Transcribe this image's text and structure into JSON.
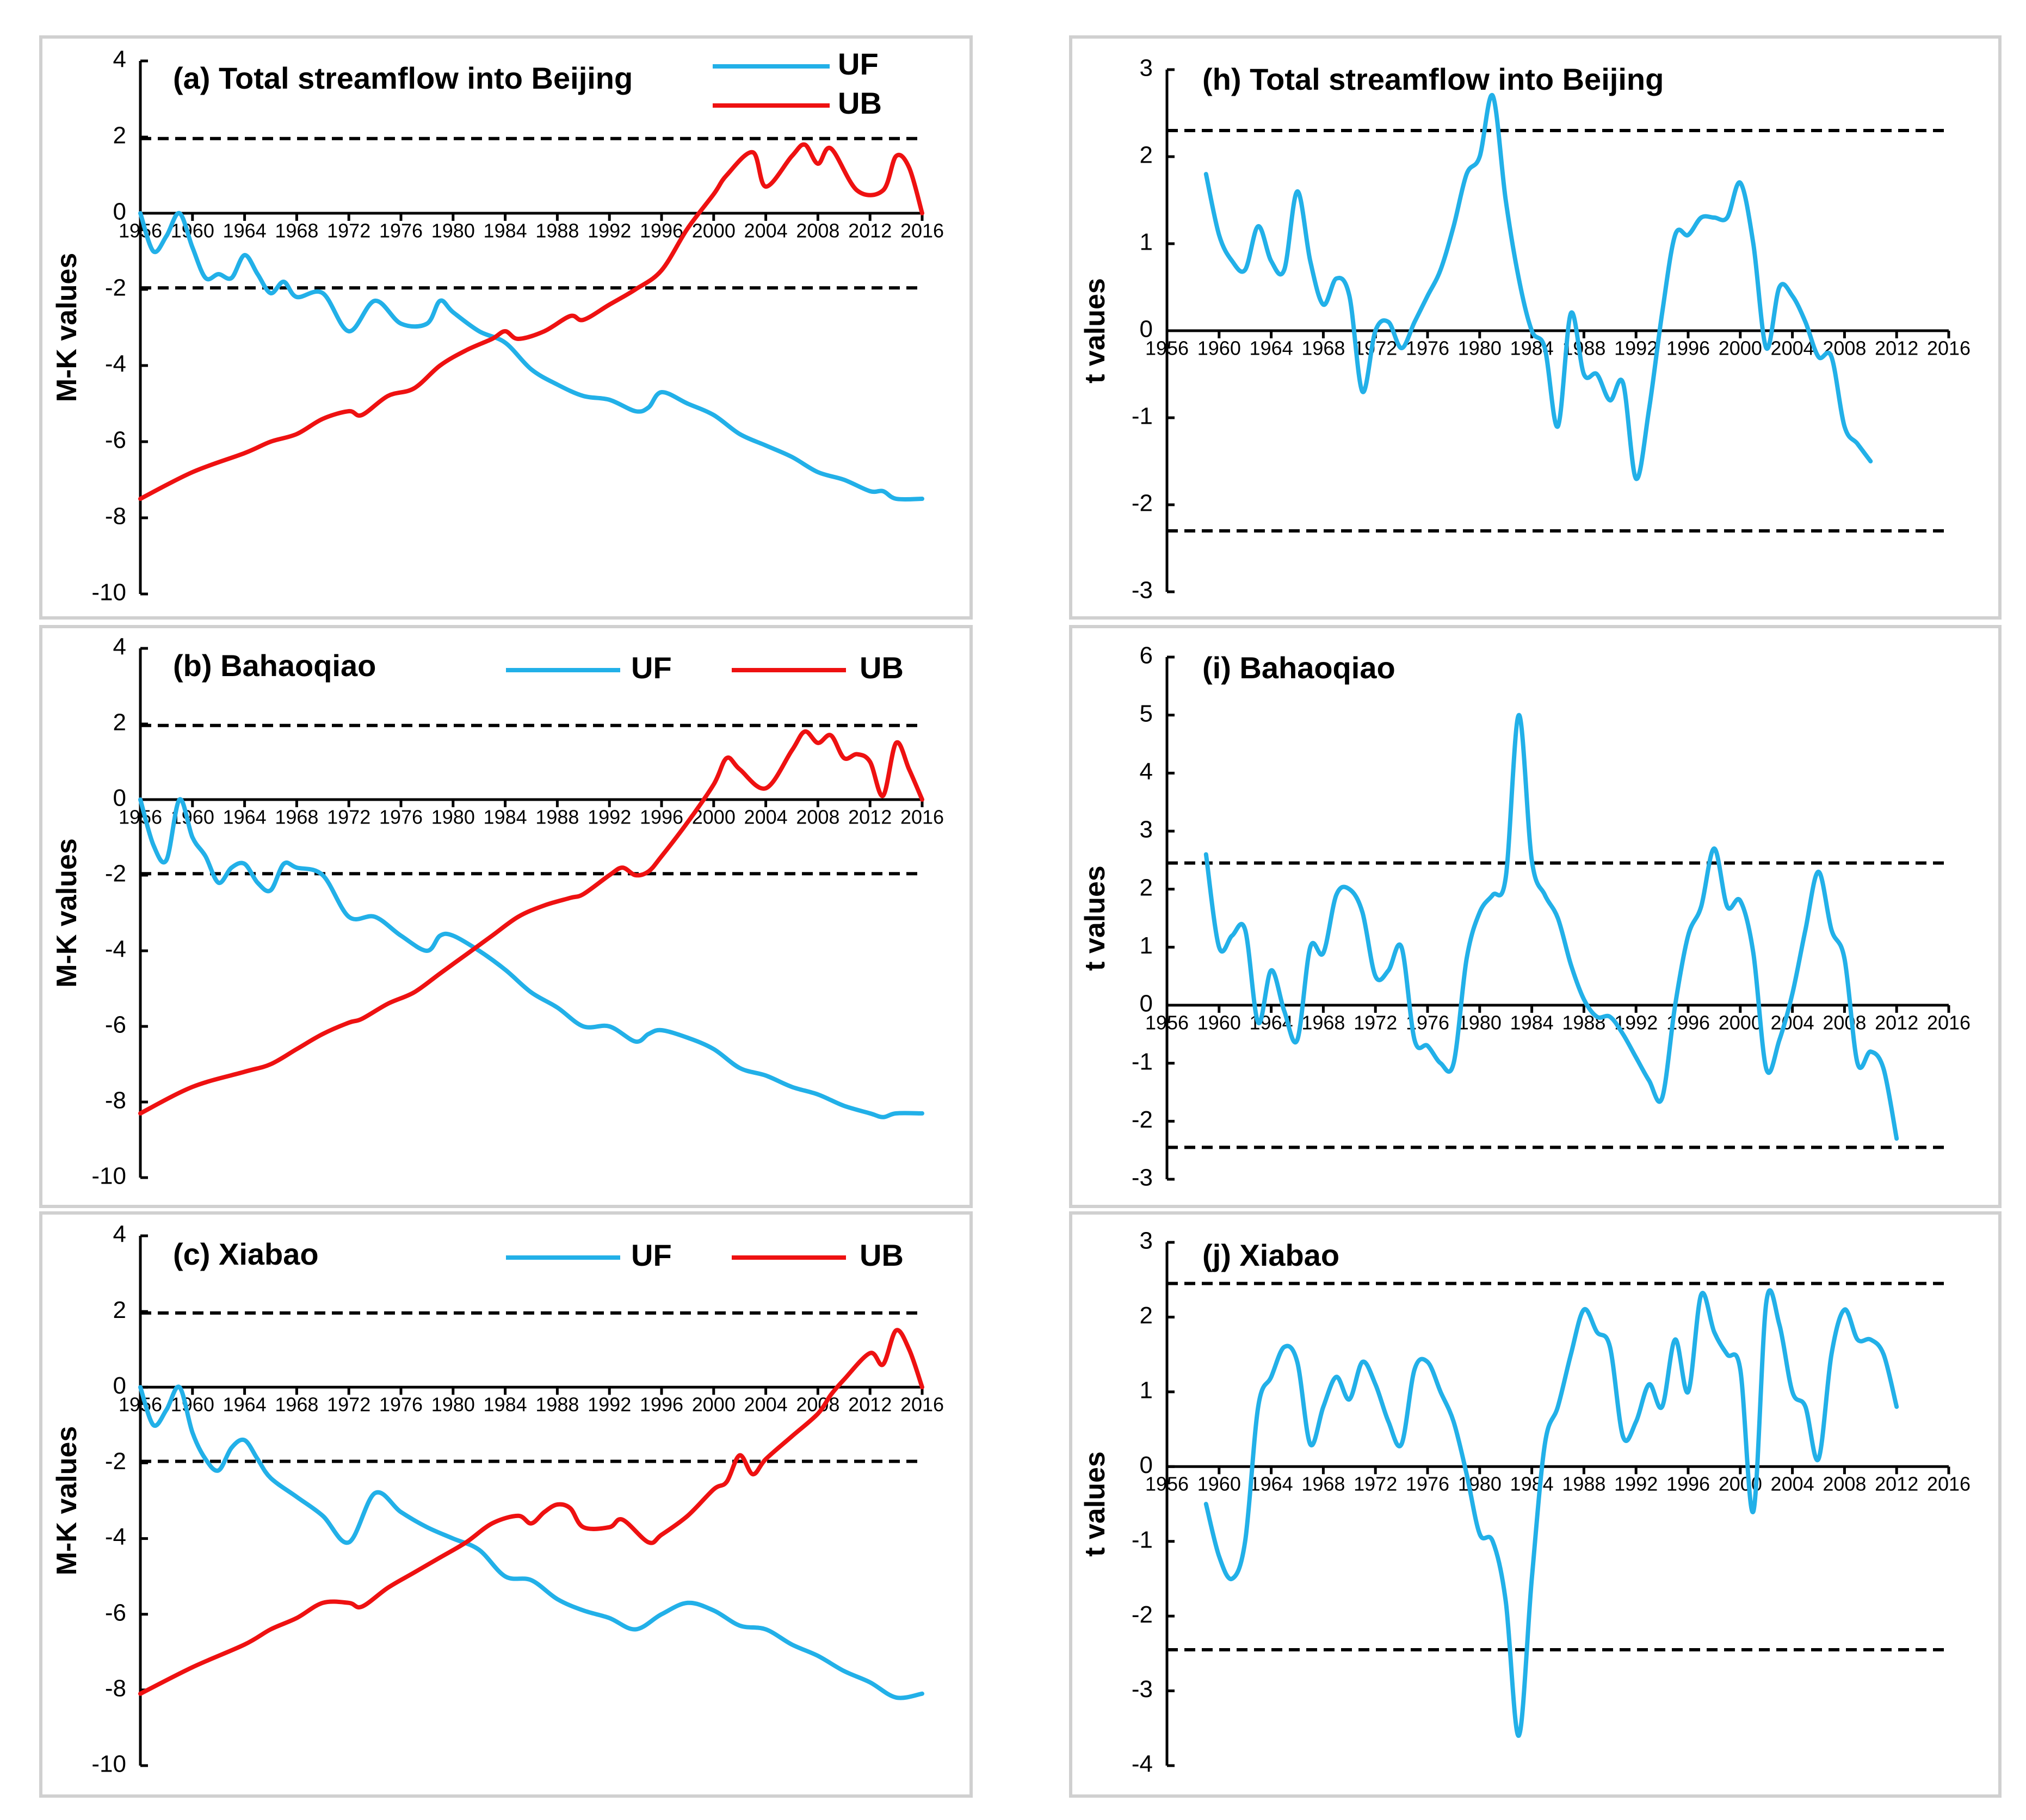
{
  "colors": {
    "UF": "#22b0e8",
    "UB": "#ee1111",
    "threshold": "#000000"
  },
  "x_years": [
    1956,
    1960,
    1964,
    1968,
    1972,
    1976,
    1980,
    1984,
    1988,
    1992,
    1996,
    2000,
    2004,
    2008,
    2012,
    2016
  ],
  "chart_data": [
    {
      "id": "a",
      "type": "line",
      "title": "(a) Total streamflow into Beijing",
      "ylabel": "M-K values",
      "xlabel": "",
      "ylim": [
        -10,
        4
      ],
      "yticks": [
        4,
        2,
        0,
        -2,
        -4,
        -6,
        -8,
        -10
      ],
      "thresholds": [
        1.96,
        -1.96
      ],
      "legend": [
        "UF",
        "UB"
      ],
      "series": [
        {
          "name": "UF",
          "x": [
            1956,
            1957,
            1958,
            1959,
            1960,
            1961,
            1962,
            1963,
            1964,
            1965,
            1966,
            1967,
            1968,
            1970,
            1972,
            1974,
            1976,
            1978,
            1979,
            1980,
            1982,
            1984,
            1986,
            1988,
            1990,
            1992,
            1994,
            1995,
            1996,
            1998,
            2000,
            2002,
            2004,
            2006,
            2008,
            2010,
            2012,
            2013,
            2014,
            2016
          ],
          "y": [
            0,
            -1.0,
            -0.6,
            0,
            -0.9,
            -1.7,
            -1.6,
            -1.7,
            -1.1,
            -1.6,
            -2.1,
            -1.8,
            -2.2,
            -2.1,
            -3.1,
            -2.3,
            -2.9,
            -2.9,
            -2.3,
            -2.6,
            -3.1,
            -3.4,
            -4.1,
            -4.5,
            -4.8,
            -4.9,
            -5.2,
            -5.1,
            -4.7,
            -5.0,
            -5.3,
            -5.8,
            -6.1,
            -6.4,
            -6.8,
            -7.0,
            -7.3,
            -7.3,
            -7.5,
            -7.5
          ]
        },
        {
          "name": "UB",
          "x": [
            1956,
            1960,
            1964,
            1966,
            1968,
            1970,
            1972,
            1973,
            1975,
            1977,
            1979,
            1981,
            1983,
            1984,
            1985,
            1987,
            1989,
            1990,
            1992,
            1994,
            1996,
            1998,
            2000,
            2001,
            2003,
            2004,
            2006,
            2007,
            2008,
            2009,
            2011,
            2013,
            2014,
            2015,
            2016
          ],
          "y": [
            -7.5,
            -6.8,
            -6.3,
            -6.0,
            -5.8,
            -5.4,
            -5.2,
            -5.3,
            -4.8,
            -4.6,
            -4.0,
            -3.6,
            -3.3,
            -3.1,
            -3.3,
            -3.1,
            -2.7,
            -2.8,
            -2.4,
            -2.0,
            -1.5,
            -0.4,
            0.5,
            1.0,
            1.6,
            0.7,
            1.5,
            1.8,
            1.3,
            1.7,
            0.6,
            0.6,
            1.5,
            1.2,
            0
          ]
        }
      ]
    },
    {
      "id": "b",
      "type": "line",
      "title": "(b) Bahaoqiao",
      "ylabel": "M-K values",
      "xlabel": "",
      "ylim": [
        -10,
        4
      ],
      "yticks": [
        4,
        2,
        0,
        -2,
        -4,
        -6,
        -8,
        -10
      ],
      "thresholds": [
        1.96,
        -1.96
      ],
      "legend": [
        "UF",
        "UB"
      ],
      "series": [
        {
          "name": "UF",
          "x": [
            1956,
            1957,
            1958,
            1959,
            1960,
            1961,
            1962,
            1963,
            1964,
            1965,
            1966,
            1967,
            1968,
            1970,
            1972,
            1974,
            1976,
            1978,
            1979,
            1980,
            1982,
            1984,
            1986,
            1988,
            1990,
            1992,
            1994,
            1995,
            1996,
            1998,
            2000,
            2002,
            2004,
            2006,
            2008,
            2010,
            2012,
            2013,
            2014,
            2016
          ],
          "y": [
            0,
            -1.2,
            -1.6,
            0,
            -1.0,
            -1.5,
            -2.2,
            -1.8,
            -1.7,
            -2.2,
            -2.4,
            -1.7,
            -1.8,
            -2.0,
            -3.1,
            -3.1,
            -3.6,
            -4.0,
            -3.6,
            -3.6,
            -4.0,
            -4.5,
            -5.1,
            -5.5,
            -6.0,
            -6.0,
            -6.4,
            -6.2,
            -6.1,
            -6.3,
            -6.6,
            -7.1,
            -7.3,
            -7.6,
            -7.8,
            -8.1,
            -8.3,
            -8.4,
            -8.3,
            -8.3
          ]
        },
        {
          "name": "UB",
          "x": [
            1956,
            1960,
            1964,
            1966,
            1968,
            1970,
            1972,
            1973,
            1975,
            1977,
            1979,
            1981,
            1983,
            1985,
            1987,
            1989,
            1990,
            1992,
            1993,
            1994,
            1995,
            1996,
            1998,
            2000,
            2001,
            2002,
            2004,
            2006,
            2007,
            2008,
            2009,
            2010,
            2011,
            2012,
            2013,
            2014,
            2015,
            2016
          ],
          "y": [
            -8.3,
            -7.6,
            -7.2,
            -7.0,
            -6.6,
            -6.2,
            -5.9,
            -5.8,
            -5.4,
            -5.1,
            -4.6,
            -4.1,
            -3.6,
            -3.1,
            -2.8,
            -2.6,
            -2.5,
            -2.0,
            -1.8,
            -2.0,
            -1.9,
            -1.5,
            -0.6,
            0.4,
            1.1,
            0.8,
            0.3,
            1.3,
            1.8,
            1.5,
            1.7,
            1.1,
            1.2,
            1.0,
            0.1,
            1.5,
            0.8,
            0
          ]
        }
      ]
    },
    {
      "id": "c",
      "type": "line",
      "title": "(c) Xiabao",
      "ylabel": "M-K values",
      "xlabel": "",
      "ylim": [
        -10,
        4
      ],
      "yticks": [
        4,
        2,
        0,
        -2,
        -4,
        -6,
        -8,
        -10
      ],
      "thresholds": [
        1.96,
        -1.96
      ],
      "legend": [
        "UF",
        "UB"
      ],
      "series": [
        {
          "name": "UF",
          "x": [
            1956,
            1957,
            1958,
            1959,
            1960,
            1961,
            1962,
            1963,
            1964,
            1965,
            1966,
            1968,
            1970,
            1972,
            1974,
            1976,
            1978,
            1980,
            1982,
            1984,
            1986,
            1988,
            1990,
            1992,
            1994,
            1996,
            1998,
            2000,
            2002,
            2004,
            2006,
            2008,
            2010,
            2012,
            2014,
            2016
          ],
          "y": [
            0,
            -1.0,
            -0.6,
            0,
            -1.2,
            -1.9,
            -2.2,
            -1.6,
            -1.4,
            -1.9,
            -2.4,
            -2.9,
            -3.4,
            -4.1,
            -2.8,
            -3.3,
            -3.7,
            -4.0,
            -4.3,
            -5.0,
            -5.1,
            -5.6,
            -5.9,
            -6.1,
            -6.4,
            -6.0,
            -5.7,
            -5.9,
            -6.3,
            -6.4,
            -6.8,
            -7.1,
            -7.5,
            -7.8,
            -8.2,
            -8.1
          ]
        },
        {
          "name": "UB",
          "x": [
            1956,
            1960,
            1964,
            1966,
            1968,
            1970,
            1972,
            1973,
            1975,
            1977,
            1979,
            1981,
            1983,
            1985,
            1986,
            1987,
            1988,
            1989,
            1990,
            1992,
            1993,
            1995,
            1996,
            1998,
            2000,
            2001,
            2002,
            2003,
            2004,
            2006,
            2008,
            2009,
            2010,
            2012,
            2013,
            2014,
            2015,
            2016
          ],
          "y": [
            -8.1,
            -7.4,
            -6.8,
            -6.4,
            -6.1,
            -5.7,
            -5.7,
            -5.8,
            -5.3,
            -4.9,
            -4.5,
            -4.1,
            -3.6,
            -3.4,
            -3.6,
            -3.3,
            -3.1,
            -3.2,
            -3.7,
            -3.7,
            -3.5,
            -4.1,
            -3.9,
            -3.4,
            -2.7,
            -2.5,
            -1.8,
            -2.3,
            -1.9,
            -1.3,
            -0.7,
            -0.2,
            0.2,
            0.9,
            0.6,
            1.5,
            1.0,
            0
          ]
        }
      ]
    },
    {
      "id": "h",
      "type": "line",
      "title": "(h) Total streamflow into Beijing",
      "ylabel": "t values",
      "xlabel": "",
      "ylim": [
        -3,
        3
      ],
      "yticks": [
        3,
        2,
        1,
        0,
        -1,
        -2,
        -3
      ],
      "thresholds": [
        2.3,
        -2.3
      ],
      "legend": [],
      "series": [
        {
          "name": "UF",
          "x": [
            1959,
            1960,
            1961,
            1962,
            1963,
            1964,
            1965,
            1966,
            1967,
            1968,
            1969,
            1970,
            1971,
            1972,
            1973,
            1974,
            1975,
            1976,
            1977,
            1978,
            1979,
            1980,
            1981,
            1982,
            1983,
            1984,
            1985,
            1986,
            1987,
            1988,
            1989,
            1990,
            1991,
            1992,
            1993,
            1994,
            1995,
            1996,
            1997,
            1998,
            1999,
            2000,
            2001,
            2002,
            2003,
            2004,
            2005,
            2006,
            2007,
            2008,
            2009,
            2010
          ],
          "y": [
            1.8,
            1.1,
            0.8,
            0.7,
            1.2,
            0.8,
            0.7,
            1.6,
            0.8,
            0.3,
            0.6,
            0.4,
            -0.7,
            0.0,
            0.1,
            -0.2,
            0.1,
            0.4,
            0.7,
            1.2,
            1.8,
            2.0,
            2.7,
            1.5,
            0.6,
            0.0,
            -0.2,
            -1.1,
            0.2,
            -0.5,
            -0.5,
            -0.8,
            -0.6,
            -1.7,
            -0.9,
            0.2,
            1.1,
            1.1,
            1.3,
            1.3,
            1.3,
            1.7,
            1.0,
            -0.2,
            0.5,
            0.4,
            0.1,
            -0.3,
            -0.3,
            -1.1,
            -1.3,
            -1.5
          ]
        }
      ]
    },
    {
      "id": "i",
      "type": "line",
      "title": "(i) Bahaoqiao",
      "ylabel": "t values",
      "xlabel": "",
      "ylim": [
        -3,
        6
      ],
      "yticks": [
        6,
        5,
        4,
        3,
        2,
        1,
        0,
        -1,
        -2,
        -3
      ],
      "thresholds": [
        2.45,
        -2.45
      ],
      "legend": [],
      "series": [
        {
          "name": "UF",
          "x": [
            1959,
            1960,
            1961,
            1962,
            1963,
            1964,
            1965,
            1966,
            1967,
            1968,
            1969,
            1970,
            1971,
            1972,
            1973,
            1974,
            1975,
            1976,
            1977,
            1978,
            1979,
            1980,
            1981,
            1982,
            1983,
            1984,
            1985,
            1986,
            1987,
            1988,
            1989,
            1990,
            1991,
            1992,
            1993,
            1994,
            1995,
            1996,
            1997,
            1998,
            1999,
            2000,
            2001,
            2002,
            2003,
            2004,
            2005,
            2006,
            2007,
            2008,
            2009,
            2010,
            2011,
            2012
          ],
          "y": [
            2.6,
            1.0,
            1.2,
            1.3,
            -0.3,
            0.6,
            -0.1,
            -0.6,
            1.0,
            0.9,
            1.9,
            2.0,
            1.6,
            0.5,
            0.6,
            1.0,
            -0.6,
            -0.7,
            -1.0,
            -1.0,
            0.8,
            1.6,
            1.9,
            2.2,
            5.0,
            2.5,
            1.9,
            1.5,
            0.7,
            0.1,
            -0.2,
            -0.2,
            -0.5,
            -0.9,
            -1.3,
            -1.6,
            0.0,
            1.2,
            1.7,
            2.7,
            1.7,
            1.8,
            0.9,
            -1.1,
            -0.6,
            0.2,
            1.3,
            2.3,
            1.3,
            0.8,
            -1.0,
            -0.8,
            -1.1,
            -2.3
          ]
        }
      ]
    },
    {
      "id": "j",
      "type": "line",
      "title": "(j) Xiabao",
      "ylabel": "t values",
      "xlabel": "",
      "ylim": [
        -4,
        3
      ],
      "yticks": [
        3,
        2,
        1,
        0,
        -1,
        -2,
        -3,
        -4
      ],
      "thresholds": [
        2.45,
        -2.45
      ],
      "legend": [],
      "series": [
        {
          "name": "UF",
          "x": [
            1959,
            1960,
            1961,
            1962,
            1963,
            1964,
            1965,
            1966,
            1967,
            1968,
            1969,
            1970,
            1971,
            1972,
            1973,
            1974,
            1975,
            1976,
            1977,
            1978,
            1979,
            1980,
            1981,
            1982,
            1983,
            1984,
            1985,
            1986,
            1987,
            1988,
            1989,
            1990,
            1991,
            1992,
            1993,
            1994,
            1995,
            1996,
            1997,
            1998,
            1999,
            2000,
            2001,
            2002,
            2003,
            2004,
            2005,
            2006,
            2007,
            2008,
            2009,
            2010,
            2011,
            2012
          ],
          "y": [
            -0.5,
            -1.2,
            -1.5,
            -1.0,
            0.8,
            1.2,
            1.6,
            1.4,
            0.3,
            0.8,
            1.2,
            0.9,
            1.4,
            1.1,
            0.6,
            0.3,
            1.3,
            1.4,
            1.0,
            0.6,
            -0.1,
            -0.9,
            -1.0,
            -1.8,
            -3.6,
            -1.5,
            0.3,
            0.8,
            1.5,
            2.1,
            1.8,
            1.6,
            0.4,
            0.6,
            1.1,
            0.8,
            1.7,
            1.0,
            2.3,
            1.8,
            1.5,
            1.3,
            -0.6,
            2.2,
            1.9,
            1.0,
            0.8,
            0.1,
            1.5,
            2.1,
            1.7,
            1.7,
            1.5,
            0.8
          ]
        }
      ]
    }
  ]
}
